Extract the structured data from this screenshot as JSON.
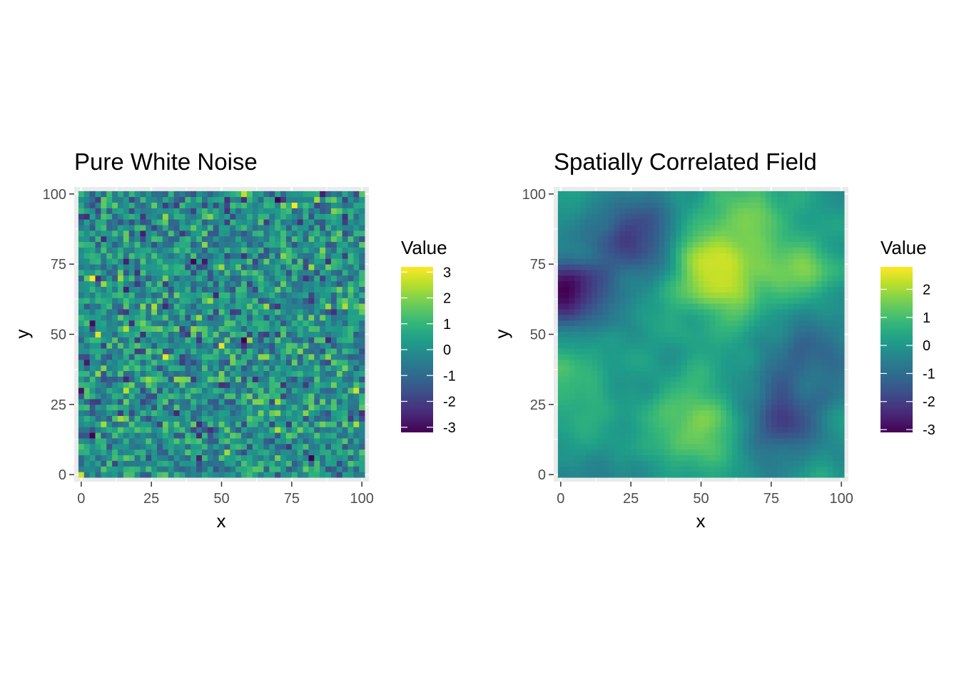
{
  "chart_data": [
    {
      "type": "heatmap",
      "title": "Pure White Noise",
      "xlabel": "x",
      "ylabel": "y",
      "xlim": [
        -2.5,
        102.5
      ],
      "ylim": [
        -2.5,
        102.5
      ],
      "x_ticks": [
        0,
        25,
        50,
        75,
        100
      ],
      "x_tick_labels": [
        "0",
        "25",
        "50",
        "75",
        "100"
      ],
      "y_ticks": [
        0,
        25,
        50,
        75,
        100
      ],
      "y_tick_labels": [
        "0",
        "25",
        "50",
        "75",
        "100"
      ],
      "grid_size": 51,
      "grid_x_range": [
        0,
        100
      ],
      "grid_y_range": [
        0,
        100
      ],
      "cell_step": 2,
      "value_range": [
        -3.2,
        3.2
      ],
      "pattern": "independent random noise, no spatial correlation",
      "grid": true,
      "colormap": "viridis",
      "legend": {
        "title": "Value",
        "placement": "right",
        "ticks": [
          3,
          2,
          1,
          0,
          -1,
          -2,
          -3
        ],
        "tick_labels": [
          "3",
          "2",
          "1",
          "0",
          "-1",
          "-2",
          "-3"
        ],
        "range": [
          -3.2,
          3.2
        ]
      },
      "hotspots": []
    },
    {
      "type": "heatmap",
      "title": "Spatially Correlated Field",
      "xlabel": "x",
      "ylabel": "y",
      "xlim": [
        -2.5,
        102.5
      ],
      "ylim": [
        -2.5,
        102.5
      ],
      "x_ticks": [
        0,
        25,
        50,
        75,
        100
      ],
      "x_tick_labels": [
        "0",
        "25",
        "50",
        "75",
        "100"
      ],
      "y_ticks": [
        0,
        25,
        50,
        75,
        100
      ],
      "y_tick_labels": [
        "0",
        "25",
        "50",
        "75",
        "100"
      ],
      "grid_size": 51,
      "grid_x_range": [
        0,
        100
      ],
      "grid_y_range": [
        0,
        100
      ],
      "cell_step": 2,
      "value_range": [
        -3.1,
        2.8
      ],
      "pattern": "smooth spatially correlated field",
      "grid": true,
      "colormap": "viridis",
      "legend": {
        "title": "Value",
        "placement": "right",
        "ticks": [
          2,
          1,
          0,
          -1,
          -2,
          -3
        ],
        "tick_labels": [
          "2",
          "1",
          "0",
          "-1",
          "-2",
          "-3"
        ],
        "range": [
          -3.1,
          2.8
        ]
      },
      "hotspots": [
        {
          "x": 56,
          "y": 72,
          "value": 2.7,
          "spread": 11
        },
        {
          "x": 48,
          "y": 18,
          "value": 1.7,
          "spread": 10
        },
        {
          "x": 86,
          "y": 72,
          "value": 1.6,
          "spread": 10
        },
        {
          "x": 65,
          "y": 95,
          "value": 1.1,
          "spread": 10
        },
        {
          "x": 3,
          "y": 33,
          "value": 0.9,
          "spread": 11
        },
        {
          "x": 2,
          "y": 64,
          "value": -3.0,
          "spread": 9
        },
        {
          "x": 25,
          "y": 85,
          "value": -2.0,
          "spread": 10
        },
        {
          "x": 80,
          "y": 20,
          "value": -1.7,
          "spread": 10
        },
        {
          "x": 90,
          "y": 45,
          "value": -1.2,
          "spread": 10
        }
      ]
    }
  ]
}
